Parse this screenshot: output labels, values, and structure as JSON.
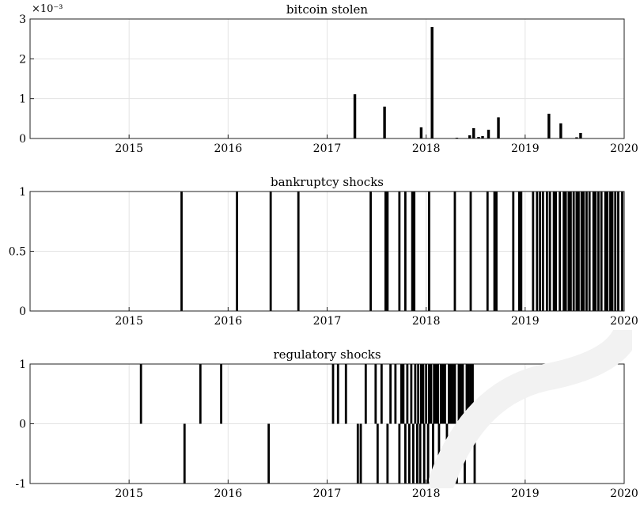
{
  "chart_data": [
    {
      "type": "bar",
      "title": "bitcoin stolen",
      "xlabel": "",
      "ylabel": "",
      "xlim": [
        2014.0,
        2020.0
      ],
      "ylim": [
        0,
        0.003
      ],
      "y_exponent_label": "×10⁻³",
      "x_ticks": [
        2015,
        2016,
        2017,
        2018,
        2019,
        2020
      ],
      "x_tick_labels": [
        "2015",
        "2016",
        "2017",
        "2018",
        "2019",
        "2020"
      ],
      "y_ticks": [
        0,
        0.001,
        0.002,
        0.003
      ],
      "y_tick_labels": [
        "0",
        "1",
        "2",
        "3"
      ],
      "grid": true,
      "points": [
        {
          "x": 2017.28,
          "y": 0.00111
        },
        {
          "x": 2017.58,
          "y": 0.0008
        },
        {
          "x": 2017.95,
          "y": 0.00028
        },
        {
          "x": 2018.06,
          "y": 0.0028
        },
        {
          "x": 2018.31,
          "y": 1e-05
        },
        {
          "x": 2018.44,
          "y": 8e-05
        },
        {
          "x": 2018.48,
          "y": 0.00026
        },
        {
          "x": 2018.53,
          "y": 4e-05
        },
        {
          "x": 2018.57,
          "y": 6e-05
        },
        {
          "x": 2018.63,
          "y": 0.00022
        },
        {
          "x": 2018.73,
          "y": 0.00053
        },
        {
          "x": 2019.24,
          "y": 0.00062
        },
        {
          "x": 2019.36,
          "y": 0.00038
        },
        {
          "x": 2019.52,
          "y": 3e-05
        },
        {
          "x": 2019.56,
          "y": 0.00014
        }
      ]
    },
    {
      "type": "bar",
      "title": "bankruptcy shocks",
      "xlabel": "",
      "ylabel": "",
      "xlim": [
        2014.0,
        2020.0
      ],
      "ylim": [
        0,
        1
      ],
      "x_ticks": [
        2015,
        2016,
        2017,
        2018,
        2019,
        2020
      ],
      "x_tick_labels": [
        "2015",
        "2016",
        "2017",
        "2018",
        "2019",
        "2020"
      ],
      "y_ticks": [
        0,
        0.5,
        1
      ],
      "y_tick_labels": [
        "0",
        "0.5",
        "1"
      ],
      "grid": true,
      "events": [
        {
          "x": 2015.53,
          "y": 1
        },
        {
          "x": 2016.09,
          "y": 1
        },
        {
          "x": 2016.43,
          "y": 1
        },
        {
          "x": 2016.71,
          "y": 1
        },
        {
          "x": 2017.44,
          "y": 1
        },
        {
          "x": 2017.59,
          "y": 1
        },
        {
          "x": 2017.61,
          "y": 1
        },
        {
          "x": 2017.73,
          "y": 1
        },
        {
          "x": 2017.79,
          "y": 1
        },
        {
          "x": 2017.86,
          "y": 1
        },
        {
          "x": 2017.88,
          "y": 1
        },
        {
          "x": 2018.03,
          "y": 1
        },
        {
          "x": 2018.29,
          "y": 1
        },
        {
          "x": 2018.45,
          "y": 1
        },
        {
          "x": 2018.62,
          "y": 1
        },
        {
          "x": 2018.69,
          "y": 1
        },
        {
          "x": 2018.71,
          "y": 1
        },
        {
          "x": 2018.88,
          "y": 1
        },
        {
          "x": 2018.94,
          "y": 1
        },
        {
          "x": 2018.96,
          "y": 1
        },
        {
          "x": 2019.08,
          "y": 1
        },
        {
          "x": 2019.12,
          "y": 1
        },
        {
          "x": 2019.15,
          "y": 1
        },
        {
          "x": 2019.18,
          "y": 1
        },
        {
          "x": 2019.22,
          "y": 1
        },
        {
          "x": 2019.25,
          "y": 1
        },
        {
          "x": 2019.29,
          "y": 1
        },
        {
          "x": 2019.31,
          "y": 1
        },
        {
          "x": 2019.35,
          "y": 1
        },
        {
          "x": 2019.39,
          "y": 1
        },
        {
          "x": 2019.41,
          "y": 1
        },
        {
          "x": 2019.44,
          "y": 1
        },
        {
          "x": 2019.46,
          "y": 1
        },
        {
          "x": 2019.49,
          "y": 1
        },
        {
          "x": 2019.52,
          "y": 1
        },
        {
          "x": 2019.54,
          "y": 1
        },
        {
          "x": 2019.57,
          "y": 1
        },
        {
          "x": 2019.59,
          "y": 1
        },
        {
          "x": 2019.62,
          "y": 1
        },
        {
          "x": 2019.65,
          "y": 1
        },
        {
          "x": 2019.69,
          "y": 1
        },
        {
          "x": 2019.71,
          "y": 1
        },
        {
          "x": 2019.74,
          "y": 1
        },
        {
          "x": 2019.77,
          "y": 1
        },
        {
          "x": 2019.81,
          "y": 1
        },
        {
          "x": 2019.83,
          "y": 1
        },
        {
          "x": 2019.86,
          "y": 1
        },
        {
          "x": 2019.88,
          "y": 1
        },
        {
          "x": 2019.91,
          "y": 1
        },
        {
          "x": 2019.94,
          "y": 1
        },
        {
          "x": 2019.98,
          "y": 1
        }
      ]
    },
    {
      "type": "bar",
      "title": "regulatory shocks",
      "xlabel": "",
      "ylabel": "",
      "xlim": [
        2014.0,
        2020.0
      ],
      "ylim": [
        -1,
        1
      ],
      "x_ticks": [
        2015,
        2016,
        2017,
        2018,
        2019,
        2020
      ],
      "x_tick_labels": [
        "2015",
        "2016",
        "2017",
        "2018",
        "2019",
        "2020"
      ],
      "y_ticks": [
        -1,
        0,
        1
      ],
      "y_tick_labels": [
        "-1",
        "0",
        "1"
      ],
      "grid": true,
      "events": [
        {
          "x": 2015.12,
          "y": 1
        },
        {
          "x": 2015.56,
          "y": -1
        },
        {
          "x": 2015.72,
          "y": 1
        },
        {
          "x": 2015.93,
          "y": 1
        },
        {
          "x": 2016.41,
          "y": -1
        },
        {
          "x": 2017.06,
          "y": 1
        },
        {
          "x": 2017.11,
          "y": 1
        },
        {
          "x": 2017.19,
          "y": 1
        },
        {
          "x": 2017.31,
          "y": -1
        },
        {
          "x": 2017.34,
          "y": -1
        },
        {
          "x": 2017.39,
          "y": 1
        },
        {
          "x": 2017.49,
          "y": 1
        },
        {
          "x": 2017.51,
          "y": -1
        },
        {
          "x": 2017.55,
          "y": 1
        },
        {
          "x": 2017.61,
          "y": -1
        },
        {
          "x": 2017.64,
          "y": 1
        },
        {
          "x": 2017.69,
          "y": 1
        },
        {
          "x": 2017.73,
          "y": -1
        },
        {
          "x": 2017.75,
          "y": 1
        },
        {
          "x": 2017.77,
          "y": 1
        },
        {
          "x": 2017.79,
          "y": -1
        },
        {
          "x": 2017.81,
          "y": 1
        },
        {
          "x": 2017.83,
          "y": -1
        },
        {
          "x": 2017.85,
          "y": 1
        },
        {
          "x": 2017.87,
          "y": -1
        },
        {
          "x": 2017.89,
          "y": 1
        },
        {
          "x": 2017.91,
          "y": -1
        },
        {
          "x": 2017.92,
          "y": 1
        },
        {
          "x": 2017.94,
          "y": -1
        },
        {
          "x": 2017.95,
          "y": 1
        },
        {
          "x": 2017.97,
          "y": 1
        },
        {
          "x": 2017.98,
          "y": -1
        },
        {
          "x": 2018.0,
          "y": 1
        },
        {
          "x": 2018.02,
          "y": -1
        },
        {
          "x": 2018.03,
          "y": 1
        },
        {
          "x": 2018.05,
          "y": 1
        },
        {
          "x": 2018.07,
          "y": -1
        },
        {
          "x": 2018.08,
          "y": 1
        },
        {
          "x": 2018.1,
          "y": 1
        },
        {
          "x": 2018.12,
          "y": 1
        },
        {
          "x": 2018.13,
          "y": -1
        },
        {
          "x": 2018.15,
          "y": 1
        },
        {
          "x": 2018.17,
          "y": 1
        },
        {
          "x": 2018.19,
          "y": 1
        },
        {
          "x": 2018.21,
          "y": -1
        },
        {
          "x": 2018.23,
          "y": 1
        },
        {
          "x": 2018.25,
          "y": 1
        },
        {
          "x": 2018.27,
          "y": 1
        },
        {
          "x": 2018.29,
          "y": 1
        },
        {
          "x": 2018.31,
          "y": -1
        },
        {
          "x": 2018.33,
          "y": 1
        },
        {
          "x": 2018.35,
          "y": 1
        },
        {
          "x": 2018.37,
          "y": 1
        },
        {
          "x": 2018.39,
          "y": -1
        },
        {
          "x": 2018.41,
          "y": 1
        },
        {
          "x": 2018.43,
          "y": 1
        },
        {
          "x": 2018.45,
          "y": 1
        },
        {
          "x": 2018.47,
          "y": 1
        },
        {
          "x": 2018.49,
          "y": -1
        }
      ]
    }
  ],
  "colors": {
    "bars": "#000000",
    "grid": "#e3e3e3",
    "axes": "#222222",
    "background": "#ffffff"
  }
}
